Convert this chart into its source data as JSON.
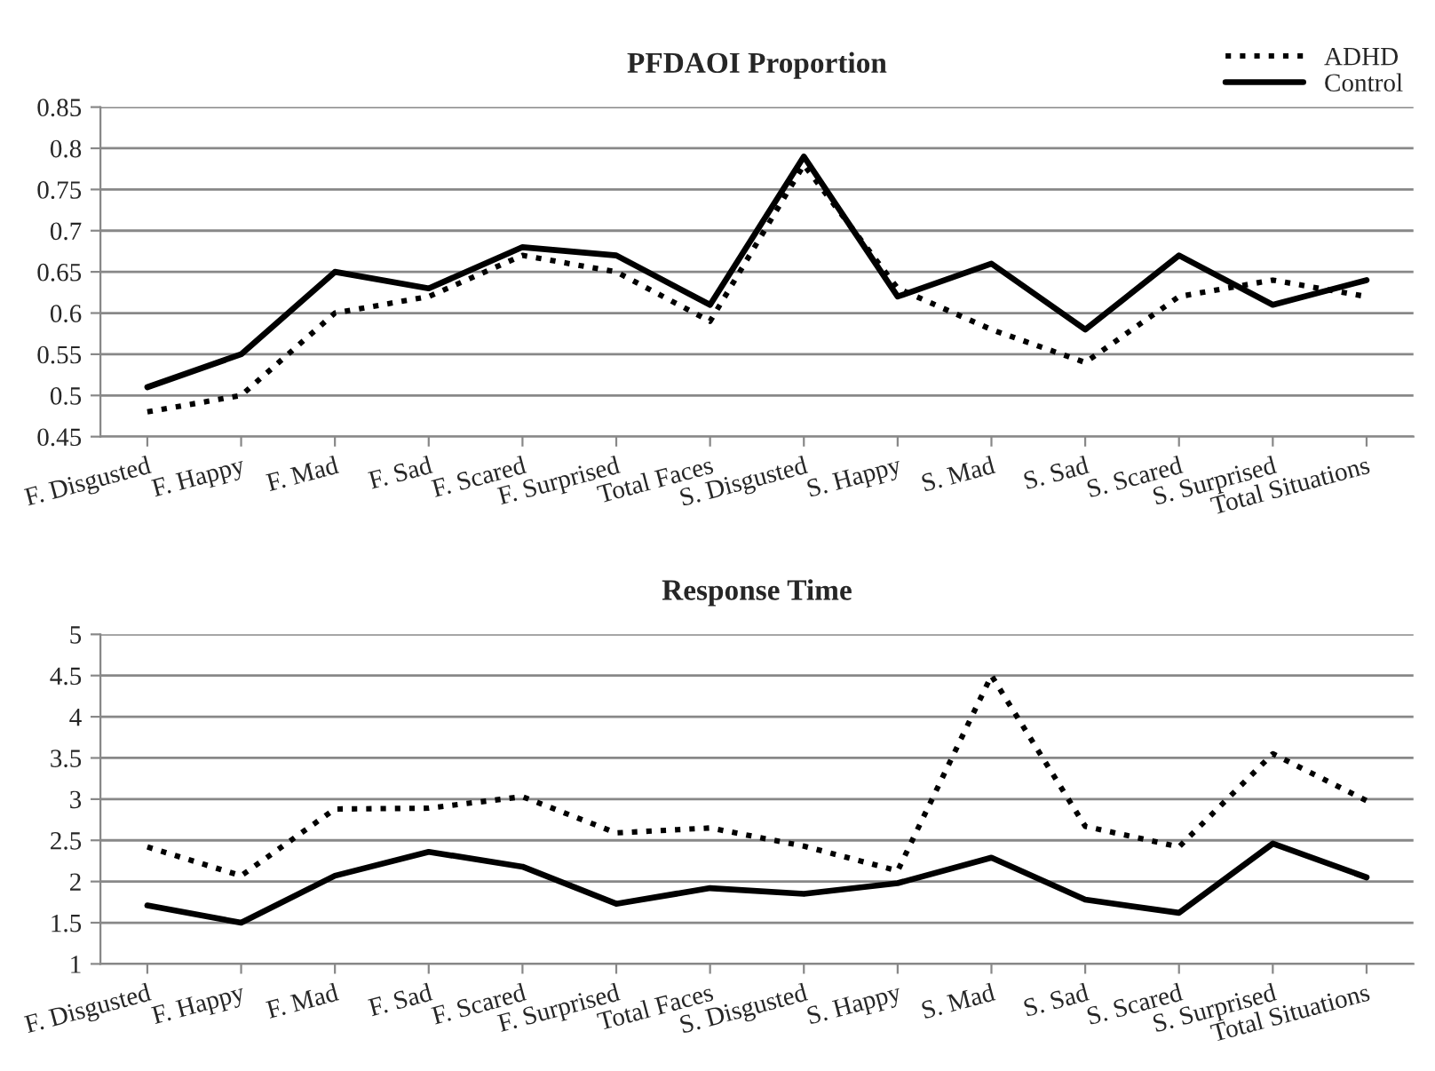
{
  "chart_data": [
    {
      "type": "line",
      "title": "PFDAOI Proportion",
      "categories": [
        "F. Disgusted",
        "F. Happy",
        "F. Mad",
        "F. Sad",
        "F. Scared",
        "F. Surprised",
        "Total Faces",
        "S. Disgusted",
        "S. Happy",
        "S. Mad",
        "S. Sad",
        "S. Scared",
        "S. Surprised",
        "Total Situations"
      ],
      "series": [
        {
          "name": "ADHD",
          "color": "#000000",
          "line_style": "dotted",
          "values": [
            0.48,
            0.5,
            0.6,
            0.62,
            0.67,
            0.65,
            0.59,
            0.78,
            0.63,
            0.58,
            0.54,
            0.62,
            0.64,
            0.62
          ]
        },
        {
          "name": "Control",
          "color": "#000000",
          "line_style": "solid",
          "values": [
            0.51,
            0.55,
            0.65,
            0.63,
            0.68,
            0.67,
            0.61,
            0.79,
            0.62,
            0.66,
            0.58,
            0.67,
            0.61,
            0.64
          ]
        }
      ],
      "ylim": [
        0.45,
        0.85
      ],
      "yticks": [
        0.45,
        0.5,
        0.55,
        0.6,
        0.65,
        0.7,
        0.75,
        0.8,
        0.85
      ],
      "grid": "y",
      "legend": "top right"
    },
    {
      "type": "line",
      "title": "Response Time",
      "categories": [
        "F. Disgusted",
        "F. Happy",
        "F. Mad",
        "F. Sad",
        "F. Scared",
        "F. Surprised",
        "Total Faces",
        "S. Disgusted",
        "S. Happy",
        "S. Mad",
        "S. Sad",
        "S. Scared",
        "S. Surprised",
        "Total Situations"
      ],
      "series": [
        {
          "color": "#000000",
          "line_style": "dotted",
          "values": [
            2.42,
            2.07,
            2.88,
            2.89,
            3.03,
            2.59,
            2.65,
            2.43,
            2.13,
            4.5,
            2.67,
            2.42,
            3.55,
            2.98
          ]
        },
        {
          "color": "#000000",
          "line_style": "solid",
          "values": [
            1.71,
            1.5,
            2.07,
            2.36,
            2.18,
            1.73,
            1.92,
            1.85,
            1.98,
            2.29,
            1.78,
            1.62,
            2.46,
            2.05
          ]
        }
      ],
      "ylim": [
        1,
        5
      ],
      "yticks": [
        1,
        1.5,
        2,
        2.5,
        3,
        3.5,
        4,
        4.5,
        5
      ],
      "grid": "y",
      "legend": false
    }
  ]
}
